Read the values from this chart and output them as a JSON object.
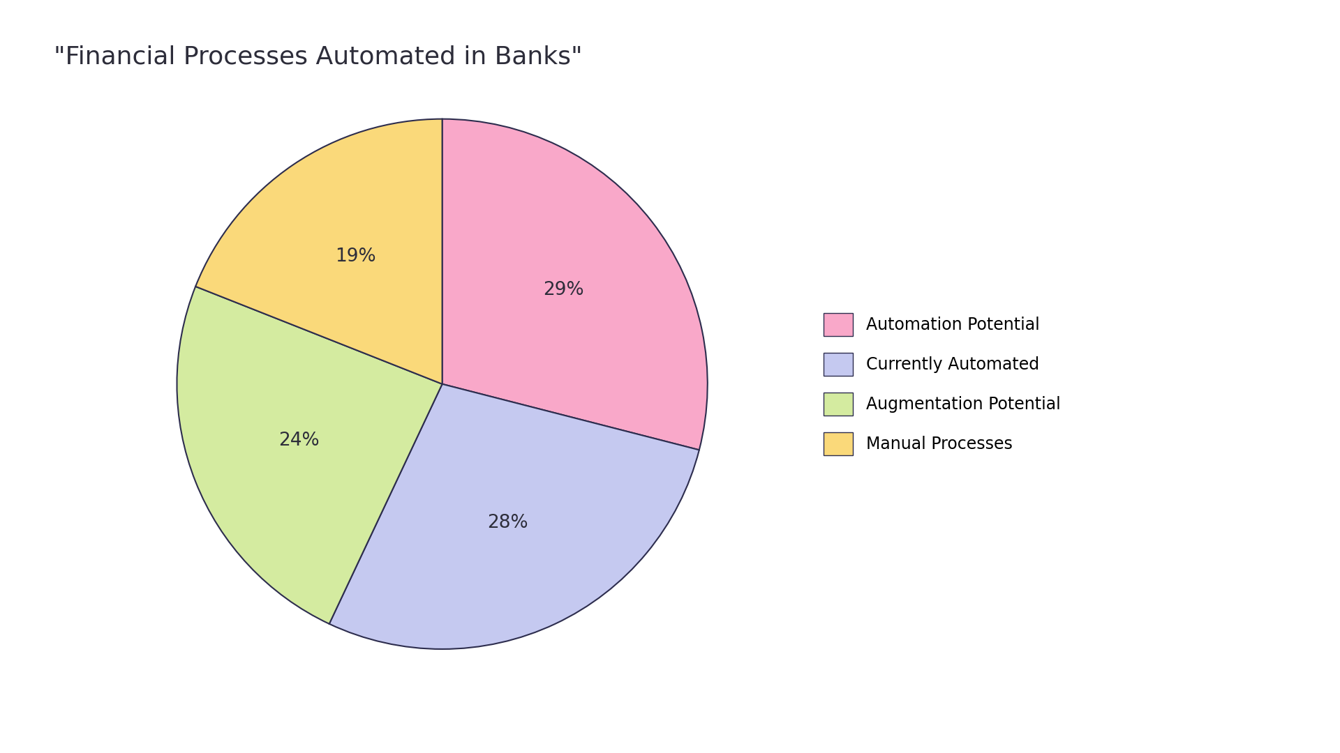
{
  "title": "\"Financial Processes Automated in Banks\"",
  "labels": [
    "Automation Potential",
    "Currently Automated",
    "Augmentation Potential",
    "Manual Processes"
  ],
  "values": [
    29,
    28,
    24,
    19
  ],
  "colors": [
    "#F9A8C9",
    "#C5C9F0",
    "#D4EBA0",
    "#FAD97A"
  ],
  "edge_color": "#2d2d4e",
  "edge_width": 1.5,
  "text_color": "#2d2d3a",
  "start_angle": 90,
  "title_fontsize": 26,
  "label_fontsize": 19,
  "legend_fontsize": 17,
  "background_color": "#ffffff"
}
